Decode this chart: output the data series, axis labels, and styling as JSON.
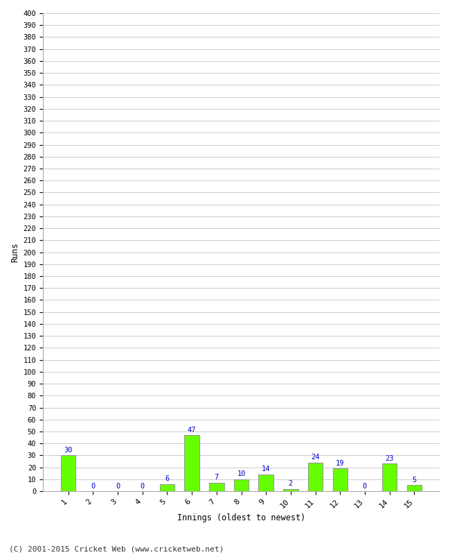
{
  "xlabel": "Innings (oldest to newest)",
  "ylabel": "Runs",
  "categories": [
    "1",
    "2",
    "3",
    "4",
    "5",
    "6",
    "7",
    "8",
    "9",
    "10",
    "11",
    "12",
    "13",
    "14",
    "15"
  ],
  "values": [
    30,
    0,
    0,
    0,
    6,
    47,
    7,
    10,
    14,
    2,
    24,
    19,
    0,
    23,
    5
  ],
  "bar_color": "#66ff00",
  "bar_edge_color": "#999999",
  "label_color": "#0000cc",
  "ylim": [
    0,
    400
  ],
  "ytick_step": 10,
  "background_color": "#ffffff",
  "grid_color": "#cccccc",
  "footer": "(C) 2001-2015 Cricket Web (www.cricketweb.net)"
}
